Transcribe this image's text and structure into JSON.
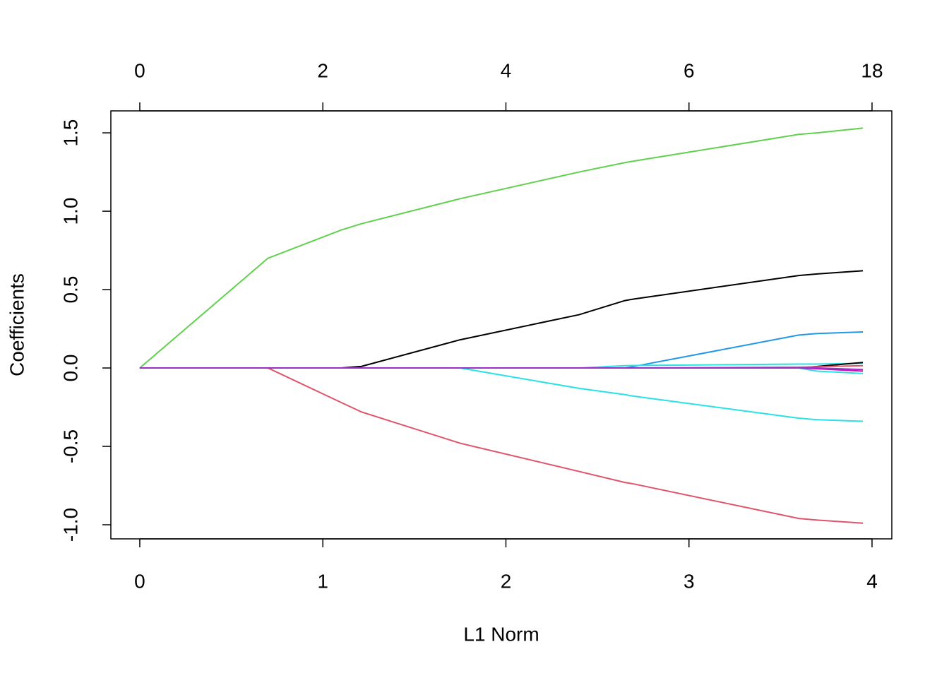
{
  "chart_data": {
    "type": "line",
    "xlabel": "L1 Norm",
    "ylabel": "Coefficients",
    "x": [
      0,
      0.7,
      1.1,
      1.21,
      1.75,
      2.4,
      2.65,
      2.7,
      3.6,
      3.7,
      3.95
    ],
    "xlim": [
      -0.158,
      4.108
    ],
    "xticks": [
      0,
      1,
      2,
      3,
      4
    ],
    "top_ticks": [
      {
        "value": 0,
        "label": "0"
      },
      {
        "value": 1,
        "label": "2"
      },
      {
        "value": 2,
        "label": "4"
      },
      {
        "value": 3,
        "label": "6"
      },
      {
        "value": 4,
        "label": "18"
      }
    ],
    "ylim": [
      -1.09,
      1.64
    ],
    "yticks": [
      {
        "value": -1,
        "label": "-1.0"
      },
      -0.5,
      {
        "value": 0,
        "label": "0.0"
      },
      0.5,
      {
        "value": 1,
        "label": "1.0"
      },
      1.5
    ],
    "series": [
      {
        "color": "#61D04F",
        "values": [
          0,
          0.7,
          0.88,
          0.92,
          1.08,
          1.25,
          1.31,
          1.32,
          1.49,
          1.5,
          1.53
        ]
      },
      {
        "color": "#DF536B",
        "values": [
          0,
          0,
          -0.22,
          -0.28,
          -0.48,
          -0.66,
          -0.73,
          -0.74,
          -0.96,
          -0.97,
          -0.99
        ]
      },
      {
        "color": "#000000",
        "values": [
          0,
          0,
          0,
          0.01,
          0.18,
          0.34,
          0.43,
          0.44,
          0.59,
          0.6,
          0.62
        ]
      },
      {
        "color": "#2297E6",
        "values": [
          0,
          0,
          0,
          0,
          0,
          0,
          0,
          0.01,
          0.21,
          0.22,
          0.23
        ]
      },
      {
        "color": "#28E2E5",
        "values": [
          0,
          0,
          0,
          0,
          0,
          -0.13,
          -0.17,
          -0.18,
          -0.32,
          -0.33,
          -0.34
        ]
      },
      {
        "color": "#28E2E5",
        "values": [
          0,
          0,
          0,
          0,
          0,
          0,
          0.015,
          0.016,
          0.025,
          0.025,
          0.03
        ]
      },
      {
        "color": "#000000",
        "values": [
          0,
          0,
          0,
          0,
          0,
          0,
          0,
          0,
          0,
          0.01,
          0.035
        ]
      },
      {
        "color": "#28E2E5",
        "values": [
          0,
          0,
          0,
          0,
          0,
          0,
          0,
          0,
          0,
          -0.02,
          -0.035
        ]
      },
      {
        "color": "#DF536B",
        "values": [
          0,
          0,
          0,
          0,
          0,
          0,
          0,
          0,
          0.005,
          0.008,
          0.015
        ]
      },
      {
        "color": "#CD0BBC",
        "values": [
          0,
          0,
          0,
          0,
          0,
          0,
          0,
          0,
          0,
          -0.005,
          -0.02
        ]
      },
      {
        "color": "#9B30C8",
        "values": [
          0,
          0,
          0,
          0,
          0,
          0,
          0,
          0,
          0,
          0,
          -0.01
        ]
      }
    ]
  }
}
